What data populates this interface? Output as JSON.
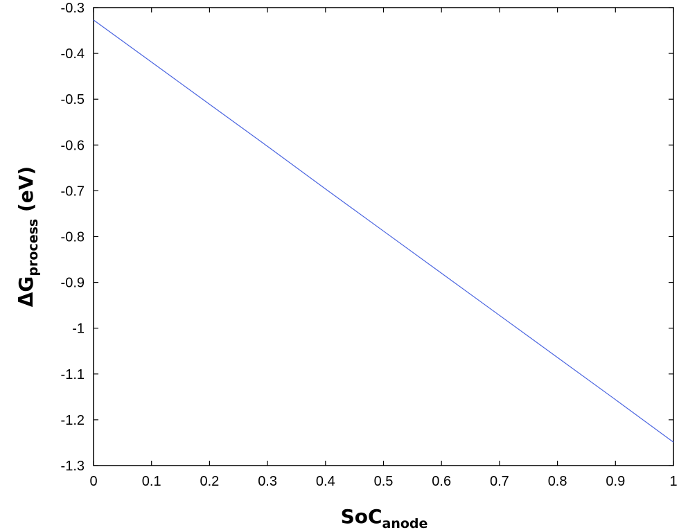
{
  "chart_data": {
    "type": "line",
    "xlabel": {
      "main": "SoC",
      "sub": "anode"
    },
    "ylabel": {
      "main": "ΔG",
      "sub": "process",
      "suffix": " (eV)"
    },
    "xlim": [
      0,
      1
    ],
    "ylim": [
      -1.3,
      -0.3
    ],
    "xticks": [
      "0",
      "0.1",
      "0.2",
      "0.3",
      "0.4",
      "0.5",
      "0.6",
      "0.7",
      "0.8",
      "0.9",
      "1"
    ],
    "yticks": [
      "-0.3",
      "-0.4",
      "-0.5",
      "-0.6",
      "-0.7",
      "-0.8",
      "-0.9",
      "-1",
      "-1.1",
      "-1.2",
      "-1.3"
    ],
    "grid": false,
    "series": [
      {
        "color": "#4a64e0",
        "x": [
          0,
          0.1,
          0.2,
          0.3,
          0.4,
          0.5,
          0.6,
          0.7,
          0.8,
          0.9,
          1
        ],
        "y": [
          -0.327,
          -0.419,
          -0.511,
          -0.603,
          -0.696,
          -0.788,
          -0.88,
          -0.972,
          -1.064,
          -1.156,
          -1.249
        ]
      }
    ]
  }
}
